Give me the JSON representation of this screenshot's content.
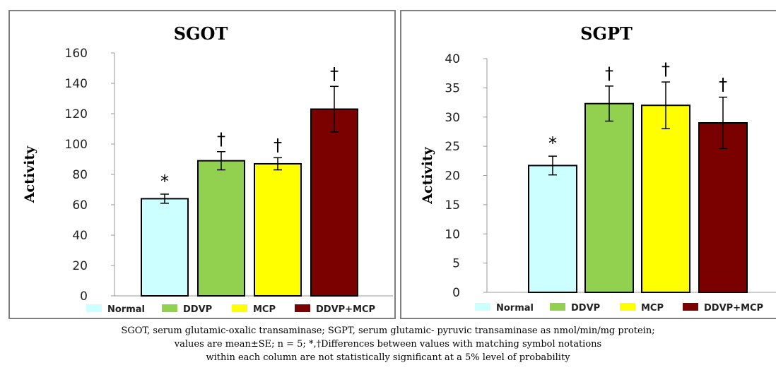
{
  "chart_data": [
    {
      "type": "bar",
      "title": "SGOT",
      "xlabel": "",
      "ylabel": "Activity",
      "ylim": [
        0,
        160
      ],
      "yticks": [
        0,
        20,
        40,
        60,
        80,
        100,
        120,
        140,
        160
      ],
      "grid": false,
      "legend_position": "bottom",
      "categories": [
        "Normal",
        "DDVP",
        "MCP",
        "DDVP+MCP"
      ],
      "values": [
        64,
        89,
        87,
        123
      ],
      "errors": [
        3,
        6,
        4,
        15
      ],
      "annotations": [
        "*",
        "†",
        "†",
        "†"
      ],
      "colors": [
        "#ccffff",
        "#92d050",
        "#ffff00",
        "#7b0000"
      ]
    },
    {
      "type": "bar",
      "title": "SGPT",
      "xlabel": "",
      "ylabel": "Activity",
      "ylim": [
        0,
        40
      ],
      "yticks": [
        0,
        5,
        10,
        15,
        20,
        25,
        30,
        35,
        40
      ],
      "grid": false,
      "legend_position": "bottom",
      "categories": [
        "Normal",
        "DDVP",
        "MCP",
        "DDVP+MCP"
      ],
      "values": [
        21.7,
        32.3,
        32,
        29
      ],
      "errors": [
        1.6,
        3,
        4,
        4.4
      ],
      "annotations": [
        "*",
        "†",
        "†",
        "†"
      ],
      "colors": [
        "#ccffff",
        "#92d050",
        "#ffff00",
        "#7b0000"
      ]
    }
  ],
  "caption": {
    "line1": "SGOT, serum glutamic-oxalic transaminase; SGPT, serum glutamic- pyruvic transaminase as nmol/min/mg protein;",
    "line2": "values are mean±SE; n = 5; *,†Differences between values with matching symbol notations",
    "line3": "within each column are not statistically significant  at a 5% level of probability"
  }
}
